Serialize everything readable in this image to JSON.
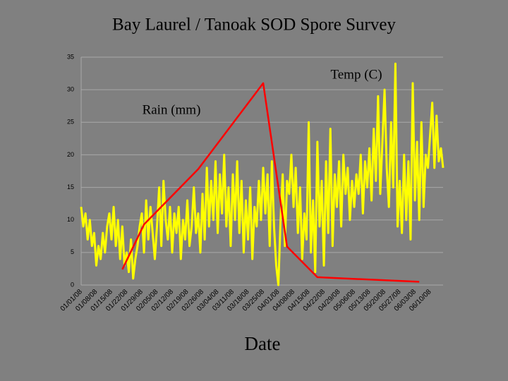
{
  "chart_data": {
    "type": "line",
    "title": "Bay Laurel / Tanoak SOD Spore Survey",
    "x_label": "Date",
    "categories": [
      "01/01/08",
      "01/08/08",
      "01/15/08",
      "01/22/08",
      "01/29/08",
      "02/05/08",
      "02/12/08",
      "02/19/08",
      "02/26/08",
      "03/04/08",
      "03/11/08",
      "03/18/08",
      "03/25/08",
      "04/01/08",
      "04/08/08",
      "04/15/08",
      "04/22/08",
      "04/29/08",
      "05/06/08",
      "05/13/08",
      "05/20/08",
      "05/27/08",
      "06/03/08",
      "06/10/08"
    ],
    "xlim": [
      "01/01/08",
      "06/16/08"
    ],
    "ylim": [
      0,
      35
    ],
    "yticks": [
      0,
      5,
      10,
      15,
      20,
      25,
      30,
      35
    ],
    "grid": true,
    "series": [
      {
        "name": "Temp (C)",
        "color": "#ffff00",
        "x": [
          "01/01/08",
          "01/02/08",
          "01/03/08",
          "01/04/08",
          "01/05/08",
          "01/06/08",
          "01/07/08",
          "01/08/08",
          "01/09/08",
          "01/10/08",
          "01/11/08",
          "01/12/08",
          "01/13/08",
          "01/14/08",
          "01/15/08",
          "01/16/08",
          "01/17/08",
          "01/18/08",
          "01/19/08",
          "01/20/08",
          "01/21/08",
          "01/22/08",
          "01/23/08",
          "01/24/08",
          "01/25/08",
          "01/26/08",
          "01/27/08",
          "01/28/08",
          "01/29/08",
          "01/30/08",
          "01/31/08",
          "02/01/08",
          "02/02/08",
          "02/03/08",
          "02/04/08",
          "02/05/08",
          "02/06/08",
          "02/07/08",
          "02/08/08",
          "02/09/08",
          "02/10/08",
          "02/11/08",
          "02/12/08",
          "02/13/08",
          "02/14/08",
          "02/15/08",
          "02/16/08",
          "02/17/08",
          "02/18/08",
          "02/19/08",
          "02/20/08",
          "02/21/08",
          "02/22/08",
          "02/23/08",
          "02/24/08",
          "02/25/08",
          "02/26/08",
          "02/27/08",
          "02/28/08",
          "02/29/08",
          "03/01/08",
          "03/02/08",
          "03/03/08",
          "03/04/08",
          "03/05/08",
          "03/06/08",
          "03/07/08",
          "03/08/08",
          "03/09/08",
          "03/10/08",
          "03/11/08",
          "03/12/08",
          "03/13/08",
          "03/14/08",
          "03/15/08",
          "03/16/08",
          "03/17/08",
          "03/18/08",
          "03/19/08",
          "03/20/08",
          "03/21/08",
          "03/22/08",
          "03/23/08",
          "03/24/08",
          "03/25/08",
          "03/26/08",
          "03/27/08",
          "03/28/08",
          "03/29/08",
          "03/30/08",
          "03/31/08",
          "04/01/08",
          "04/02/08",
          "04/03/08",
          "04/04/08",
          "04/05/08",
          "04/06/08",
          "04/07/08",
          "04/08/08",
          "04/09/08",
          "04/10/08",
          "04/11/08",
          "04/12/08",
          "04/13/08",
          "04/14/08",
          "04/15/08",
          "04/16/08",
          "04/17/08",
          "04/18/08",
          "04/19/08",
          "04/20/08",
          "04/21/08",
          "04/22/08",
          "04/23/08",
          "04/24/08",
          "04/25/08",
          "04/26/08",
          "04/27/08",
          "04/28/08",
          "04/29/08",
          "04/30/08",
          "05/01/08",
          "05/02/08",
          "05/03/08",
          "05/04/08",
          "05/05/08",
          "05/06/08",
          "05/07/08",
          "05/08/08",
          "05/09/08",
          "05/10/08",
          "05/11/08",
          "05/12/08",
          "05/13/08",
          "05/14/08",
          "05/15/08",
          "05/16/08",
          "05/17/08",
          "05/18/08",
          "05/19/08",
          "05/20/08",
          "05/21/08",
          "05/22/08",
          "05/23/08",
          "05/24/08",
          "05/25/08",
          "05/26/08",
          "05/27/08",
          "05/28/08",
          "05/29/08",
          "05/30/08",
          "05/31/08",
          "06/01/08",
          "06/02/08",
          "06/03/08",
          "06/04/08",
          "06/05/08",
          "06/06/08",
          "06/07/08",
          "06/08/08",
          "06/09/08",
          "06/10/08",
          "06/11/08",
          "06/12/08",
          "06/13/08",
          "06/14/08",
          "06/15/08",
          "06/16/08"
        ],
        "values": [
          12,
          9,
          11,
          7,
          10,
          6,
          8,
          3,
          6,
          4,
          8,
          5,
          9,
          11,
          7,
          12,
          6,
          10,
          4,
          9,
          3,
          5,
          2,
          7,
          1,
          4,
          6,
          9,
          11,
          5,
          13,
          7,
          12,
          8,
          4,
          9,
          15,
          6,
          16,
          10,
          7,
          12,
          5,
          11,
          8,
          12,
          4,
          10,
          7,
          13,
          6,
          9,
          15,
          8,
          11,
          5,
          14,
          7,
          18,
          9,
          16,
          10,
          19,
          8,
          17,
          11,
          20,
          9,
          15,
          6,
          17,
          10,
          19,
          8,
          16,
          5,
          13,
          7,
          15,
          4,
          12,
          9,
          16,
          10,
          18,
          11,
          17,
          6,
          19,
          9,
          3,
          0,
          10,
          17,
          6,
          16,
          14,
          20,
          12,
          18,
          8,
          15,
          4,
          11,
          7,
          25,
          5,
          13,
          2,
          22,
          9,
          16,
          3,
          19,
          8,
          24,
          6,
          17,
          12,
          19,
          9,
          20,
          14,
          18,
          10,
          16,
          12,
          17,
          14,
          20,
          11,
          19,
          15,
          21,
          13,
          24,
          16,
          29,
          14,
          22,
          30,
          18,
          12,
          25,
          15,
          34,
          9,
          16,
          8,
          20,
          10,
          19,
          7,
          31,
          13,
          22,
          10,
          25,
          12,
          20,
          18,
          23,
          28,
          18,
          26,
          19,
          21,
          18
        ]
      },
      {
        "name": "Rain (mm)",
        "color": "#ff0000",
        "x": [
          "01/20/08",
          "01/30/08",
          "02/24/08",
          "03/25/08",
          "04/05/08",
          "04/19/08",
          "06/05/08"
        ],
        "values": [
          2.4,
          9.3,
          17.8,
          31,
          5.9,
          1.2,
          0.5
        ]
      }
    ]
  }
}
